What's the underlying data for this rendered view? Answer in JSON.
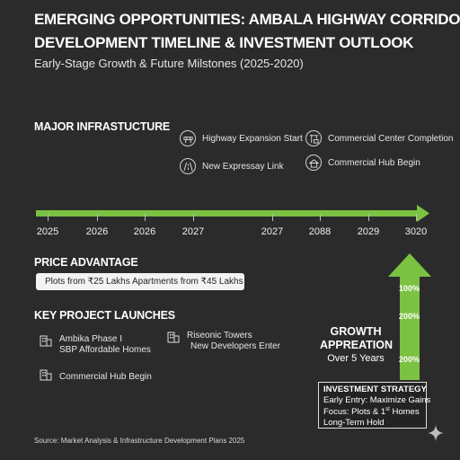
{
  "header": {
    "title_line1": "EMERGING OPPORTUNITIES: AMBALA HIGHWAY CORRIDOR",
    "title_line2": "DEVELOPMENT TIMELINE & INVESTMENT OUTLOOK",
    "subtitle": "Early-Stage Growth & Future Milstones (2025-2020)"
  },
  "infrastructure": {
    "heading": "MAJOR INFRASTUCTURE",
    "milestones": [
      {
        "label": "Highway Expansion Start",
        "icon": "road-barrier-icon"
      },
      {
        "label": "New Expressay Link",
        "icon": "road-icon"
      },
      {
        "label": "Commercial Center Completion",
        "icon": "crane-icon"
      },
      {
        "label": "Commercial Hub Begin",
        "icon": "building-icon"
      }
    ]
  },
  "timeline": {
    "years": [
      "2025",
      "2026",
      "2026",
      "2027",
      "2027",
      "2088",
      "2029",
      "3020"
    ],
    "color": "#7bc142"
  },
  "price": {
    "heading": "PRICE ADVANTAGE",
    "text": "Plots from ₹25 Lakhs   Apartments from ₹45 Lakhs"
  },
  "launches": {
    "heading": "KEY PROJECT LAUNCHES",
    "items": [
      {
        "line1": "Ambika Phase I",
        "line2": "SBP Affordable Homes"
      },
      {
        "line1": "Riseonic Towers",
        "line2": "New Developers Enter"
      },
      {
        "line1": "Commercial Hub Begin",
        "line2": ""
      }
    ]
  },
  "growth": {
    "title_line1": "GROWTH",
    "title_line2": "APPREATION",
    "subtitle": "Over 5 Years",
    "levels": [
      "100%",
      "200%",
      "200%"
    ],
    "color": "#7bc142"
  },
  "strategy": {
    "heading": "INVESTMENT STRATEGY",
    "line1": "Early Entry: Maximize Gains",
    "line2_pre": "Focus: Plots & 1",
    "line2_sup": "st",
    "line2_post": " Homes",
    "line3": "Long-Term Hold"
  },
  "source": "Source: Market Analysis & Infrastructure Development Plans 2025"
}
